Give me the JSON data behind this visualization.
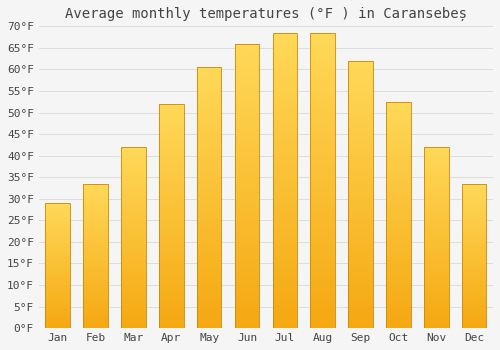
{
  "title": "Average monthly temperatures (°F ) in Caransebeș",
  "months": [
    "Jan",
    "Feb",
    "Mar",
    "Apr",
    "May",
    "Jun",
    "Jul",
    "Aug",
    "Sep",
    "Oct",
    "Nov",
    "Dec"
  ],
  "values": [
    29,
    33.5,
    42,
    52,
    60.5,
    66,
    68.5,
    68.5,
    62,
    52.5,
    42,
    33.5
  ],
  "bar_color_top": "#FFCC44",
  "bar_color_bottom": "#F5A800",
  "bar_edge_color": "#CC8800",
  "background_color": "#F5F5F5",
  "plot_bg_color": "#F5F5F5",
  "grid_color": "#DDDDDD",
  "text_color": "#444444",
  "ylim": [
    0,
    70
  ],
  "yticks": [
    0,
    5,
    10,
    15,
    20,
    25,
    30,
    35,
    40,
    45,
    50,
    55,
    60,
    65,
    70
  ],
  "title_fontsize": 10,
  "tick_fontsize": 8,
  "font_family": "monospace",
  "bar_width": 0.65
}
